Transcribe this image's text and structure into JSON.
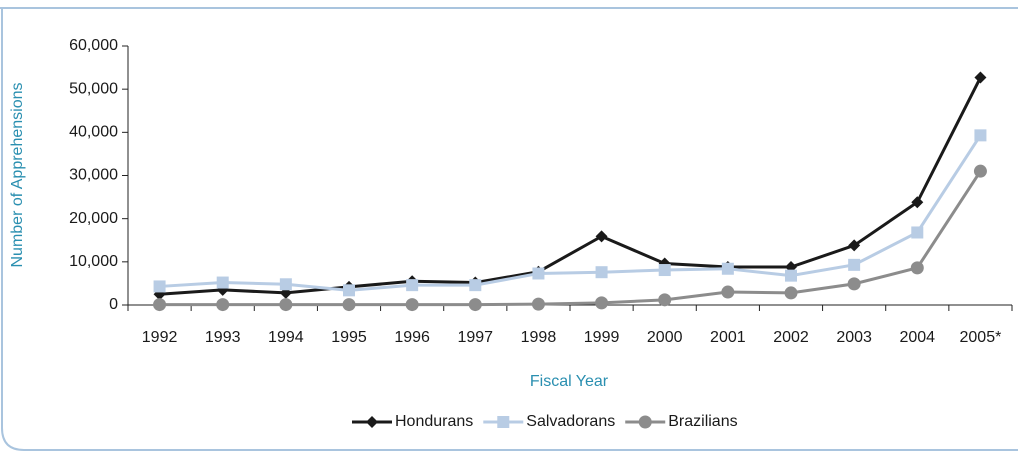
{
  "chart_data": {
    "type": "line",
    "xlabel": "Fiscal Year",
    "ylabel": "Number of Apprehensions",
    "categories": [
      "1992",
      "1993",
      "1994",
      "1995",
      "1996",
      "1997",
      "1998",
      "1999",
      "2000",
      "2001",
      "2002",
      "2003",
      "2004",
      "2005*"
    ],
    "series": [
      {
        "name": "Hondurans",
        "color": "#1a1a1a",
        "marker": "diamond",
        "values": [
          2500,
          3500,
          2800,
          4200,
          5500,
          5200,
          7700,
          15900,
          9600,
          8800,
          8800,
          13800,
          23800,
          52700
        ]
      },
      {
        "name": "Salvadorans",
        "color": "#b8cce4",
        "marker": "square",
        "values": [
          4300,
          5200,
          4800,
          3400,
          4600,
          4600,
          7300,
          7600,
          8100,
          8400,
          6800,
          9300,
          16800,
          39300
        ]
      },
      {
        "name": "Brazilians",
        "color": "#8c8c8c",
        "marker": "circle",
        "values": [
          100,
          100,
          100,
          100,
          100,
          100,
          200,
          500,
          1200,
          3000,
          2800,
          4900,
          8600,
          31000
        ]
      }
    ],
    "ylim": [
      0,
      60000
    ],
    "yticks": [
      0,
      {
        "value": 10000,
        "label": "10,000"
      },
      {
        "value": 20000,
        "label": "20,000"
      },
      {
        "value": 30000,
        "label": "30,000"
      },
      {
        "value": 40000,
        "label": "40,000"
      },
      {
        "value": 50000,
        "label": "50,000"
      },
      {
        "value": 60000,
        "label": "60,000"
      }
    ],
    "grid": false,
    "legend": "bottom"
  }
}
